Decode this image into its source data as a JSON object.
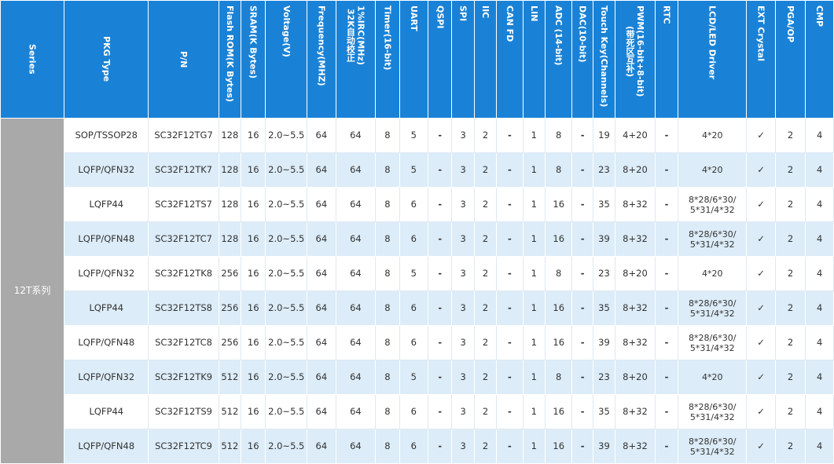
{
  "headers": [
    {
      "key": "series",
      "label": "Series"
    },
    {
      "key": "pkg",
      "label": "PKG Type"
    },
    {
      "key": "pn",
      "label": "P/N"
    },
    {
      "key": "flash",
      "label": "Flash ROM(K Bytes)"
    },
    {
      "key": "sram",
      "label": "SRAM(K Bytes)"
    },
    {
      "key": "voltage",
      "label": "Voltage(V)"
    },
    {
      "key": "freq",
      "label": "Frequency(MHZ)"
    },
    {
      "key": "irc",
      "label": "1%IRC(MHz)\n32K自动校正"
    },
    {
      "key": "timer",
      "label": "Timer(16-bit)"
    },
    {
      "key": "uart",
      "label": "UART"
    },
    {
      "key": "qspi",
      "label": "QSPI"
    },
    {
      "key": "spi",
      "label": "SPI"
    },
    {
      "key": "iic",
      "label": "IIC"
    },
    {
      "key": "canfd",
      "label": "CAN FD"
    },
    {
      "key": "lin",
      "label": "LIN"
    },
    {
      "key": "adc",
      "label": "ADC (14-bit)"
    },
    {
      "key": "dac",
      "label": "DAC(10-bit)"
    },
    {
      "key": "touch",
      "label": "Touch Key(Channels)"
    },
    {
      "key": "pwm",
      "label": "PWM(16-bit+8-bit)\n(带死区互补)"
    },
    {
      "key": "rtc",
      "label": "RTC"
    },
    {
      "key": "lcd",
      "label": "LCD/LED Driver"
    },
    {
      "key": "ext",
      "label": "EXT Crystal"
    },
    {
      "key": "pga",
      "label": "PGA/OP"
    },
    {
      "key": "cmp",
      "label": "CMP"
    }
  ],
  "series_label": "12T系列",
  "rows": [
    {
      "pkg": "SOP/TSSOP28",
      "pn": "SC32F12TG7",
      "flash": "128",
      "sram": "16",
      "voltage": "2.0~5.5",
      "freq": "64",
      "irc": "64",
      "timer": "8",
      "uart": "5",
      "qspi": "-",
      "spi": "3",
      "iic": "2",
      "canfd": "-",
      "lin": "1",
      "adc": "8",
      "dac": "-",
      "touch": "19",
      "pwm": "4+20",
      "rtc": "-",
      "lcd": "4*20",
      "ext": "✓",
      "pga": "2",
      "cmp": "4"
    },
    {
      "pkg": "LQFP/QFN32",
      "pn": "SC32F12TK7",
      "flash": "128",
      "sram": "16",
      "voltage": "2.0~5.5",
      "freq": "64",
      "irc": "64",
      "timer": "8",
      "uart": "5",
      "qspi": "-",
      "spi": "3",
      "iic": "2",
      "canfd": "-",
      "lin": "1",
      "adc": "8",
      "dac": "-",
      "touch": "23",
      "pwm": "8+20",
      "rtc": "-",
      "lcd": "4*20",
      "ext": "✓",
      "pga": "2",
      "cmp": "4"
    },
    {
      "pkg": "LQFP44",
      "pn": "SC32F12TS7",
      "flash": "128",
      "sram": "16",
      "voltage": "2.0~5.5",
      "freq": "64",
      "irc": "64",
      "timer": "8",
      "uart": "6",
      "qspi": "-",
      "spi": "3",
      "iic": "2",
      "canfd": "-",
      "lin": "1",
      "adc": "16",
      "dac": "-",
      "touch": "35",
      "pwm": "8+32",
      "rtc": "-",
      "lcd": "8*28/6*30/\n5*31/4*32",
      "ext": "✓",
      "pga": "2",
      "cmp": "4"
    },
    {
      "pkg": "LQFP/QFN48",
      "pn": "SC32F12TC7",
      "flash": "128",
      "sram": "16",
      "voltage": "2.0~5.5",
      "freq": "64",
      "irc": "64",
      "timer": "8",
      "uart": "6",
      "qspi": "-",
      "spi": "3",
      "iic": "2",
      "canfd": "-",
      "lin": "1",
      "adc": "16",
      "dac": "-",
      "touch": "39",
      "pwm": "8+32",
      "rtc": "-",
      "lcd": "8*28/6*30/\n5*31/4*32",
      "ext": "✓",
      "pga": "2",
      "cmp": "4"
    },
    {
      "pkg": "LQFP/QFN32",
      "pn": "SC32F12TK8",
      "flash": "256",
      "sram": "16",
      "voltage": "2.0~5.5",
      "freq": "64",
      "irc": "64",
      "timer": "8",
      "uart": "5",
      "qspi": "-",
      "spi": "3",
      "iic": "2",
      "canfd": "-",
      "lin": "1",
      "adc": "8",
      "dac": "-",
      "touch": "23",
      "pwm": "8+20",
      "rtc": "-",
      "lcd": "4*20",
      "ext": "✓",
      "pga": "2",
      "cmp": "4"
    },
    {
      "pkg": "LQFP44",
      "pn": "SC32F12TS8",
      "flash": "256",
      "sram": "16",
      "voltage": "2.0~5.5",
      "freq": "64",
      "irc": "64",
      "timer": "8",
      "uart": "6",
      "qspi": "-",
      "spi": "3",
      "iic": "2",
      "canfd": "-",
      "lin": "1",
      "adc": "16",
      "dac": "-",
      "touch": "35",
      "pwm": "8+32",
      "rtc": "-",
      "lcd": "8*28/6*30/\n5*31/4*32",
      "ext": "✓",
      "pga": "2",
      "cmp": "4"
    },
    {
      "pkg": "LQFP/QFN48",
      "pn": "SC32F12TC8",
      "flash": "256",
      "sram": "16",
      "voltage": "2.0~5.5",
      "freq": "64",
      "irc": "64",
      "timer": "8",
      "uart": "6",
      "qspi": "-",
      "spi": "3",
      "iic": "2",
      "canfd": "-",
      "lin": "1",
      "adc": "16",
      "dac": "-",
      "touch": "39",
      "pwm": "8+32",
      "rtc": "-",
      "lcd": "8*28/6*30/\n5*31/4*32",
      "ext": "✓",
      "pga": "2",
      "cmp": "4"
    },
    {
      "pkg": "LQFP/QFN32",
      "pn": "SC32F12TK9",
      "flash": "512",
      "sram": "16",
      "voltage": "2.0~5.5",
      "freq": "64",
      "irc": "64",
      "timer": "8",
      "uart": "5",
      "qspi": "-",
      "spi": "3",
      "iic": "2",
      "canfd": "-",
      "lin": "1",
      "adc": "8",
      "dac": "-",
      "touch": "23",
      "pwm": "8+20",
      "rtc": "-",
      "lcd": "4*20",
      "ext": "✓",
      "pga": "2",
      "cmp": "4"
    },
    {
      "pkg": "LQFP44",
      "pn": "SC32F12TS9",
      "flash": "512",
      "sram": "16",
      "voltage": "2.0~5.5",
      "freq": "64",
      "irc": "64",
      "timer": "8",
      "uart": "6",
      "qspi": "-",
      "spi": "3",
      "iic": "2",
      "canfd": "-",
      "lin": "1",
      "adc": "16",
      "dac": "-",
      "touch": "35",
      "pwm": "8+32",
      "rtc": "-",
      "lcd": "8*28/6*30/\n5*31/4*32",
      "ext": "✓",
      "pga": "2",
      "cmp": "4"
    },
    {
      "pkg": "LQFP/QFN48",
      "pn": "SC32F12TC9",
      "flash": "512",
      "sram": "16",
      "voltage": "2.0~5.5",
      "freq": "64",
      "irc": "64",
      "timer": "8",
      "uart": "6",
      "qspi": "-",
      "spi": "3",
      "iic": "2",
      "canfd": "-",
      "lin": "1",
      "adc": "16",
      "dac": "-",
      "touch": "39",
      "pwm": "8+32",
      "rtc": "-",
      "lcd": "8*28/6*30/\n5*31/4*32",
      "ext": "✓",
      "pga": "2",
      "cmp": "4"
    }
  ],
  "colors": {
    "header": "#1a82d6",
    "row_alt": "#dcecf8",
    "series_bg": "#a9a9a9"
  }
}
